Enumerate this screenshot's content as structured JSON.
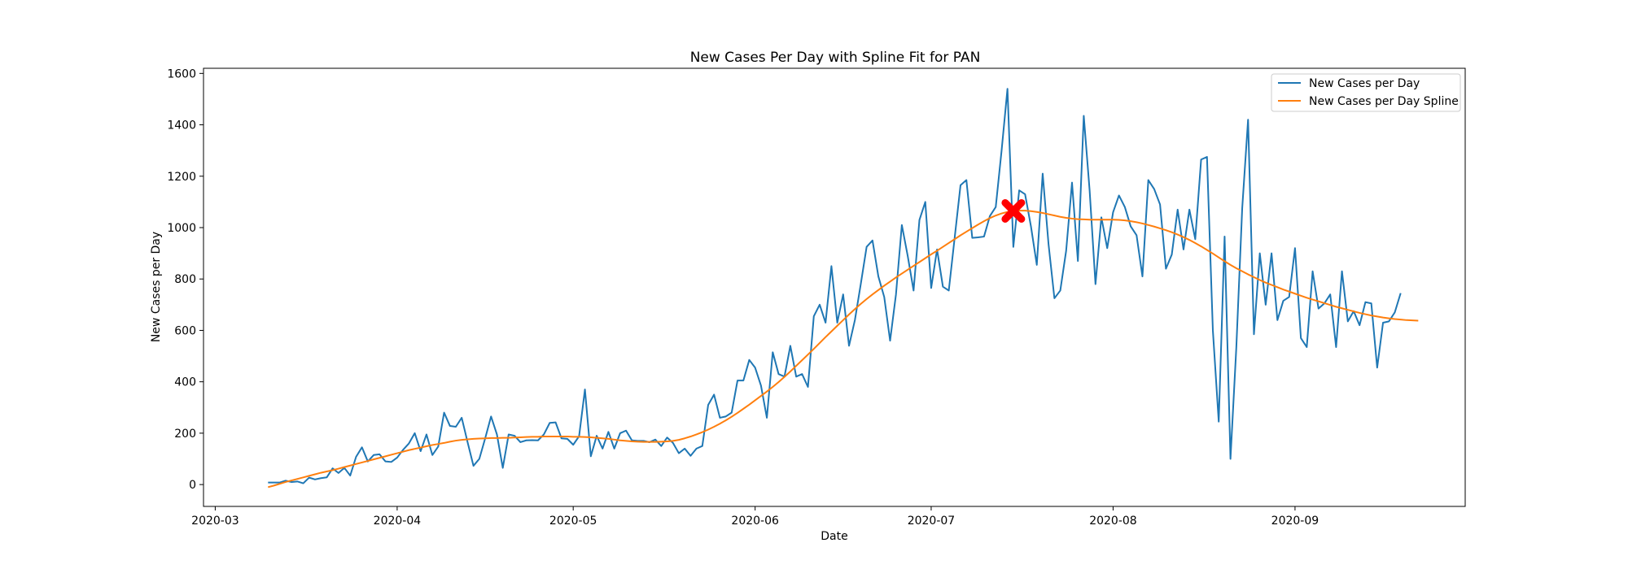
{
  "chart_data": {
    "type": "line",
    "title": "New Cases Per Day with Spline Fit for PAN",
    "xlabel": "Date",
    "ylabel": "New Cases per Day",
    "x_start": "2020-03-10",
    "xlim": [
      "2020-02-28",
      "2020-09-30"
    ],
    "ylim": [
      -85,
      1620
    ],
    "x_ticks": [
      "2020-03-01",
      "2020-04-01",
      "2020-05-01",
      "2020-06-01",
      "2020-07-01",
      "2020-08-01",
      "2020-09-01"
    ],
    "x_tick_labels": [
      "2020-03",
      "2020-04",
      "2020-05",
      "2020-06",
      "2020-07",
      "2020-08",
      "2020-09"
    ],
    "y_ticks": [
      0,
      200,
      400,
      600,
      800,
      1000,
      1200,
      1400,
      1600
    ],
    "y_tick_labels": [
      "0",
      "200",
      "400",
      "600",
      "800",
      "1000",
      "1200",
      "1400",
      "1600"
    ],
    "legend_position": "top-right",
    "grid": false,
    "series": [
      {
        "name": "New Cases per Day",
        "color": "#1f77b4",
        "values": [
          8,
          8,
          8,
          15,
          10,
          12,
          5,
          27,
          20,
          25,
          28,
          63,
          45,
          65,
          35,
          108,
          145,
          90,
          115,
          118,
          90,
          88,
          105,
          135,
          160,
          200,
          130,
          195,
          115,
          148,
          280,
          228,
          225,
          260,
          165,
          73,
          100,
          180,
          265,
          195,
          65,
          195,
          190,
          165,
          172,
          173,
          172,
          195,
          240,
          242,
          180,
          178,
          155,
          188,
          370,
          110,
          190,
          140,
          205,
          140,
          200,
          210,
          172,
          170,
          170,
          165,
          175,
          150,
          183,
          162,
          122,
          140,
          112,
          140,
          150,
          310,
          350,
          260,
          265,
          280,
          405,
          405,
          485,
          455,
          385,
          260,
          515,
          430,
          420,
          540,
          420,
          430,
          380,
          655,
          700,
          630,
          850,
          630,
          740,
          540,
          640,
          780,
          925,
          950,
          810,
          730,
          560,
          740,
          1010,
          890,
          755,
          1030,
          1100,
          765,
          915,
          770,
          755,
          960,
          1165,
          1185,
          960,
          962,
          965,
          1045,
          1080,
          1300,
          1540,
          925,
          1145,
          1130,
          1005,
          855,
          1210,
          935,
          725,
          755,
          910,
          1175,
          870,
          1435,
          1145,
          780,
          1040,
          920,
          1060,
          1125,
          1080,
          1005,
          970,
          810,
          1185,
          1150,
          1090,
          840,
          895,
          1070,
          915,
          1070,
          955,
          1265,
          1275,
          600,
          245,
          965,
          100,
          535,
          1075,
          1420,
          585,
          900,
          700,
          900,
          640,
          715,
          730,
          920,
          570,
          535,
          830,
          685,
          705,
          740,
          535,
          830,
          635,
          675,
          620,
          710,
          705,
          455,
          630,
          635,
          670,
          745
        ]
      },
      {
        "name": "New Cases per Day Spline",
        "color": "#ff7f0e",
        "values": [
          -10,
          -4,
          3,
          10,
          16,
          22,
          28,
          34,
          40,
          46,
          51,
          56,
          62,
          68,
          74,
          80,
          86,
          92,
          98,
          104,
          110,
          116,
          122,
          128,
          134,
          139,
          144,
          149,
          154,
          158,
          162,
          167,
          171,
          174,
          176,
          178,
          179,
          180,
          181,
          181,
          182,
          182,
          183,
          184,
          185,
          186,
          186,
          187,
          187,
          187,
          187,
          187,
          186,
          186,
          185,
          184,
          182,
          180,
          178,
          175,
          172,
          170,
          168,
          167,
          166,
          166,
          166,
          167,
          168,
          170,
          174,
          180,
          187,
          195,
          204,
          214,
          225,
          237,
          250,
          264,
          279,
          295,
          311,
          328,
          345,
          362,
          380,
          399,
          419,
          440,
          462,
          484,
          506,
          528,
          551,
          574,
          596,
          618,
          640,
          662,
          683,
          703,
          722,
          740,
          757,
          774,
          790,
          806,
          821,
          836,
          851,
          866,
          881,
          896,
          910,
          925,
          940,
          955,
          970,
          984,
          998,
          1012,
          1025,
          1037,
          1047,
          1055,
          1061,
          1065,
          1066,
          1066,
          1064,
          1061,
          1057,
          1052,
          1047,
          1042,
          1038,
          1035,
          1033,
          1032,
          1031,
          1031,
          1031,
          1031,
          1031,
          1030,
          1028,
          1025,
          1021,
          1016,
          1010,
          1004,
          997,
          990,
          982,
          973,
          963,
          952,
          940,
          927,
          913,
          899,
          884,
          869,
          855,
          842,
          830,
          818,
          807,
          796,
          786,
          777,
          768,
          759,
          751,
          743,
          735,
          727,
          720,
          713,
          706,
          699,
          692,
          686,
          680,
          674,
          668,
          663,
          658,
          654,
          650,
          647,
          644,
          642,
          640,
          639,
          638
        ]
      }
    ],
    "annotations": [
      {
        "label": "peak-marker",
        "x": "2020-07-15",
        "y": 1065,
        "color": "#ff0000"
      }
    ]
  }
}
